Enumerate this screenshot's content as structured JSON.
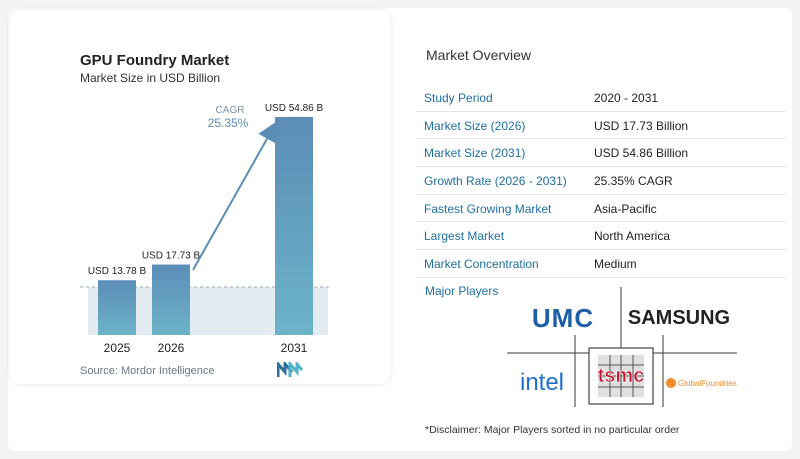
{
  "chart_data": {
    "type": "bar",
    "title": "GPU Foundry Market",
    "subtitle": "Market Size in USD Billion",
    "categories": [
      "2025",
      "2026",
      "2031"
    ],
    "values": [
      13.78,
      17.73,
      54.86
    ],
    "value_labels": [
      "USD 13.78 B",
      "USD 17.73 B",
      "USD 54.86 B"
    ],
    "ylim": [
      0,
      54.86
    ],
    "annotation": {
      "label": "CAGR",
      "value": "25.35%"
    },
    "colors": {
      "bar_light": "#5b8db7",
      "bar_teal": "#6cb3c8",
      "shade": "#e4ecf3",
      "arrow": "#5b8db7"
    }
  },
  "source": "Source:  Mordor Intelligence",
  "overview": {
    "title": "Market Overview",
    "rows": [
      {
        "label": "Study Period",
        "value": "2020 - 2031"
      },
      {
        "label": "Market Size (2026)",
        "value": "USD 17.73 Billion"
      },
      {
        "label": "Market Size (2031)",
        "value": "USD 54.86 Billion"
      },
      {
        "label": "Growth Rate (2026 - 2031)",
        "value": "25.35% CAGR"
      },
      {
        "label": "Fastest Growing Market",
        "value": "Asia-Pacific"
      },
      {
        "label": "Largest Market",
        "value": "North America"
      },
      {
        "label": "Market Concentration",
        "value": "Medium"
      }
    ]
  },
  "players": {
    "title": "Major Players",
    "logos": [
      "UMC",
      "SAMSUNG",
      "intel",
      "tsmc",
      "GlobalFoundries"
    ]
  },
  "disclaimer": "*Disclaimer: Major Players sorted in no particular order"
}
